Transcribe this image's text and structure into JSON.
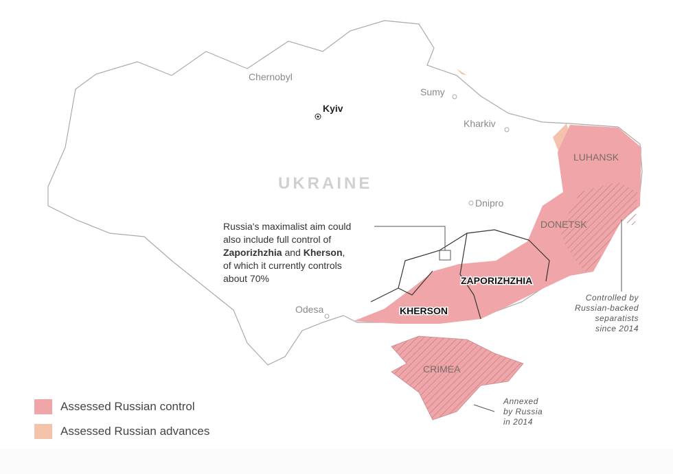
{
  "map": {
    "country_label": "UKRAINE",
    "cities": [
      {
        "name": "Chernobyl"
      },
      {
        "name": "Kyiv",
        "capital": true
      },
      {
        "name": "Sumy"
      },
      {
        "name": "Kharkiv"
      },
      {
        "name": "Dnipro"
      },
      {
        "name": "Odesa"
      }
    ],
    "regions": {
      "luhansk": "LUHANSK",
      "donetsk": "DONETSK",
      "zaporizhzhia": "ZAPORIZHZHIA",
      "kherson": "KHERSON",
      "crimea": "CRIMEA"
    },
    "annotations": {
      "maximalist": {
        "line1": "Russia's maximalist aim could",
        "line2": "also include full control of",
        "bold1": "Zaporizhzhia",
        "mid": " and ",
        "bold2": "Kherson",
        "end": ",",
        "line4": "of which it currently controls",
        "line5": "about 70%"
      },
      "separatists": [
        "Controlled by",
        "Russian-backed",
        "separatists",
        "since 2014"
      ],
      "crimea": [
        "Annexed",
        "by Russia",
        "in 2014"
      ]
    },
    "colors": {
      "control": "#f0a5a9",
      "advances": "#f5c2ac",
      "hatch": "#c98a8e"
    }
  },
  "legend": [
    {
      "label": "Assessed Russian control",
      "color": "#f0a5a9"
    },
    {
      "label": "Assessed Russian advances",
      "color": "#f5c2ac"
    }
  ]
}
